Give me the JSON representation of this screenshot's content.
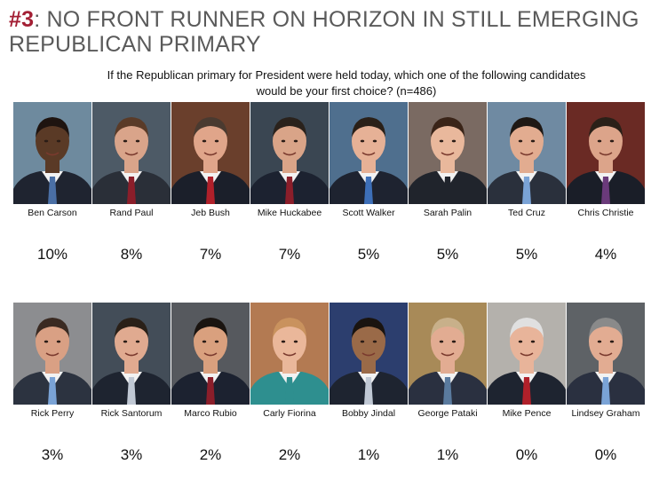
{
  "header": {
    "number": "#3",
    "title": ": NO FRONT RUNNER ON HORIZON IN STILL EMERGING REPUBLICAN PRIMARY"
  },
  "question": "If the Republican primary for President were held today, which one of the following candidates would be your first choice? (n=486)",
  "chart_data": {
    "type": "bar",
    "title": "",
    "categories": [
      "Ben Carson",
      "Rand Paul",
      "Jeb Bush",
      "Mike Huckabee",
      "Scott Walker",
      "Sarah Palin",
      "Ted Cruz",
      "Chris Christie",
      "Rick Perry",
      "Rick Santorum",
      "Marco Rubio",
      "Carly Fiorina",
      "Bobby Jindal",
      "George Pataki",
      "Mike Pence",
      "Lindsey Graham"
    ],
    "values": [
      10,
      8,
      7,
      7,
      5,
      5,
      5,
      4,
      3,
      3,
      2,
      2,
      1,
      1,
      0,
      0
    ],
    "labels": [
      "10%",
      "8%",
      "7%",
      "7%",
      "5%",
      "5%",
      "5%",
      "4%",
      "3%",
      "3%",
      "2%",
      "2%",
      "1%",
      "1%",
      "0%",
      "0%"
    ]
  },
  "candidates": [
    {
      "name": "Ben Carson",
      "pct": "10%",
      "bg": "#6e8a9e",
      "skin": "#5a3a26",
      "hair": "#1e1410",
      "suit": "#1f2430",
      "tie": "#4a6fa5"
    },
    {
      "name": "Rand Paul",
      "pct": "8%",
      "bg": "#4d5a66",
      "skin": "#d9a48a",
      "hair": "#5a3b28",
      "suit": "#2a2f38",
      "tie": "#8b1e2a"
    },
    {
      "name": "Jeb Bush",
      "pct": "7%",
      "bg": "#6a3f2c",
      "skin": "#e0a58a",
      "hair": "#4a3a30",
      "suit": "#1b1f2a",
      "tie": "#b0202a"
    },
    {
      "name": "Mike Huckabee",
      "pct": "7%",
      "bg": "#3a4652",
      "skin": "#d9a488",
      "hair": "#2a221c",
      "suit": "#1c2230",
      "tie": "#8b1e2a"
    },
    {
      "name": "Scott Walker",
      "pct": "5%",
      "bg": "#4f6f8e",
      "skin": "#e6b196",
      "hair": "#2a2018",
      "suit": "#1e2330",
      "tie": "#3d6fb8"
    },
    {
      "name": "Sarah Palin",
      "pct": "5%",
      "bg": "#7a6a62",
      "skin": "#e9b89c",
      "hair": "#3a2418",
      "suit": "#20242c",
      "tie": "#20242c"
    },
    {
      "name": "Ted Cruz",
      "pct": "5%",
      "bg": "#6f8aa2",
      "skin": "#e2ac90",
      "hair": "#1e1814",
      "suit": "#2a303c",
      "tie": "#7aa3d6"
    },
    {
      "name": "Chris Christie",
      "pct": "4%",
      "bg": "#6a2a24",
      "skin": "#dca48a",
      "hair": "#2a2018",
      "suit": "#1a1e28",
      "tie": "#6a3a7a"
    },
    {
      "name": "Rick Perry",
      "pct": "3%",
      "bg": "#8c8d90",
      "skin": "#d9a084",
      "hair": "#3a2a22",
      "suit": "#2c3340",
      "tie": "#7aa3d6"
    },
    {
      "name": "Rick Santorum",
      "pct": "3%",
      "bg": "#434d58",
      "skin": "#e0aa90",
      "hair": "#2a2018",
      "suit": "#1e2430",
      "tie": "#c0c8d4"
    },
    {
      "name": "Marco Rubio",
      "pct": "2%",
      "bg": "#56595e",
      "skin": "#d9a07e",
      "hair": "#1a1410",
      "suit": "#1c2230",
      "tie": "#8b1e2a"
    },
    {
      "name": "Carly Fiorina",
      "pct": "2%",
      "bg": "#b37a52",
      "skin": "#eab79a",
      "hair": "#c9925e",
      "suit": "#2e8f8f",
      "tie": "#2e8f8f"
    },
    {
      "name": "Bobby Jindal",
      "pct": "1%",
      "bg": "#2c3e6e",
      "skin": "#9a6a48",
      "hair": "#1a1410",
      "suit": "#1e2430",
      "tie": "#c0c8d4"
    },
    {
      "name": "George Pataki",
      "pct": "1%",
      "bg": "#a88a58",
      "skin": "#e2ac92",
      "hair": "#c8b08a",
      "suit": "#2a3040",
      "tie": "#5a7a9e"
    },
    {
      "name": "Mike Pence",
      "pct": "0%",
      "bg": "#b4b1ac",
      "skin": "#e8b49a",
      "hair": "#e0e0e0",
      "suit": "#1e2430",
      "tie": "#b0202a"
    },
    {
      "name": "Lindsey Graham",
      "pct": "0%",
      "bg": "#5e6266",
      "skin": "#e2ac92",
      "hair": "#8a8a8a",
      "suit": "#2a3040",
      "tie": "#7aa3d6"
    }
  ]
}
